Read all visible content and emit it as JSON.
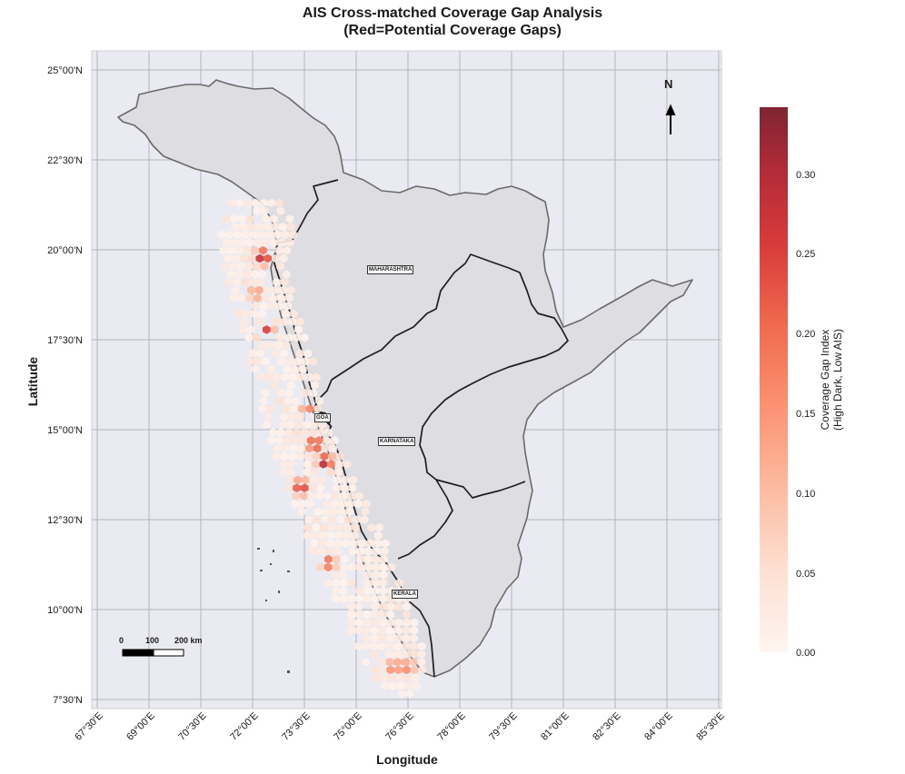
{
  "title_line_1": "AIS Cross-matched Coverage Gap Analysis",
  "title_line_2": "(Red=Potential Coverage Gaps)",
  "xlabel": "Longitude",
  "ylabel": "Latitude",
  "lat_ticks": [
    "25°00'N",
    "22°30'N",
    "20°00'N",
    "17°30'N",
    "15°00'N",
    "12°30'N",
    "10°00'N",
    "7°30'N"
  ],
  "lon_ticks": [
    "67°30'E",
    "69°00'E",
    "70°30'E",
    "72°00'E",
    "73°30'E",
    "75°00'E",
    "76°30'E",
    "78°00'E",
    "79°30'E",
    "81°00'E",
    "82°30'E",
    "84°00'E",
    "85°30'E"
  ],
  "colorbar": {
    "label_line_1": "Coverage Gap Index",
    "label_line_2": "(High Dark, Low AIS)",
    "ticks": [
      "0.30",
      "0.25",
      "0.20",
      "0.15",
      "0.10",
      "0.05",
      "0.00"
    ],
    "max": 0.34
  },
  "north_arrow": "N",
  "scale_bar": {
    "labels": [
      "0",
      "100",
      "200 km"
    ]
  },
  "states": [
    "MAHARASHTRA",
    "GOA",
    "KARNATAKA",
    "KERALA"
  ],
  "colors": {
    "plot_bg": "#eaeaf2",
    "land": "#dddde2",
    "gap_low": "#fff5f0",
    "gap_high": "#7f2531"
  },
  "chart_data": {
    "type": "heatmap",
    "style": "hexbin",
    "title": "AIS Cross-matched Coverage Gap Analysis (Red=Potential Coverage Gaps)",
    "xlabel": "Longitude",
    "ylabel": "Latitude",
    "xlim": [
      67.3,
      85.6
    ],
    "ylim": [
      7.3,
      25.3
    ],
    "colorbar_label": "Coverage Gap Index (High Dark, Low AIS)",
    "vmin": 0.0,
    "vmax": 0.34,
    "grid": true,
    "hotspots": [
      {
        "lon": 72.3,
        "lat": 19.8,
        "value": 0.32
      },
      {
        "lon": 72.4,
        "lat": 17.7,
        "value": 0.28
      },
      {
        "lon": 73.8,
        "lat": 14.6,
        "value": 0.28
      },
      {
        "lon": 74.1,
        "lat": 14.1,
        "value": 0.32
      },
      {
        "lon": 73.4,
        "lat": 13.4,
        "value": 0.28
      },
      {
        "lon": 74.2,
        "lat": 11.3,
        "value": 0.22
      },
      {
        "lon": 73.6,
        "lat": 15.6,
        "value": 0.18
      },
      {
        "lon": 72.1,
        "lat": 18.8,
        "value": 0.16
      },
      {
        "lon": 76.1,
        "lat": 8.4,
        "value": 0.2
      },
      {
        "lon": 76.5,
        "lat": 8.4,
        "value": 0.18
      }
    ]
  }
}
